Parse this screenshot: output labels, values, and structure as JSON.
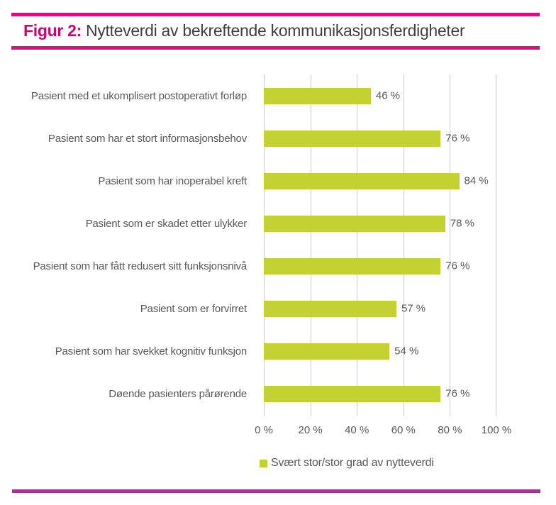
{
  "figure": {
    "label": "Figur 2:",
    "title": "Nytteverdi av bekreftende kommunikasjonsferdigheter"
  },
  "chart_data": {
    "type": "bar",
    "orientation": "horizontal",
    "title": "Figur 2: Nytteverdi av bekreftende kommunikasjonsferdigheter",
    "categories": [
      "Pasient med et ukomplisert postoperativt forløp",
      "Pasient som har et stort informasjonsbehov",
      "Pasient som har inoperabel kreft",
      "Pasient som er skadet etter ulykker",
      "Pasient som har fått redusert sitt funksjonsnivå",
      "Pasient som er forvirret",
      "Pasient som har svekket kognitiv funksjon",
      "Døende pasienters pårørende"
    ],
    "values": [
      46,
      76,
      84,
      78,
      76,
      57,
      54,
      76
    ],
    "value_labels": [
      "46 %",
      "76 %",
      "84 %",
      "78 %",
      "76 %",
      "57 %",
      "54 %",
      "76 %"
    ],
    "xlim": [
      0,
      100
    ],
    "x_tick_values": [
      0,
      20,
      40,
      60,
      80,
      100
    ],
    "x_tick_labels": [
      "0 %",
      "20 %",
      "40 %",
      "60 %",
      "80 %",
      "100 %"
    ],
    "grid": true,
    "legend_position": "bottom",
    "bar_color": "#c3d232"
  },
  "legend": {
    "label": "Svært stor/stor grad av nytteverdi",
    "swatch_color": "#c3d232"
  },
  "colors": {
    "bar_green": "#c3d232",
    "rule_magenta_top": "#d3137e",
    "rule_magenta_bottom": "#a93190",
    "figure_label_magenta": "#c50a6d",
    "title_text": "#3f3f41",
    "axis_text": "#59595b",
    "gridline": "#cbccce",
    "background": "#ffffff"
  }
}
